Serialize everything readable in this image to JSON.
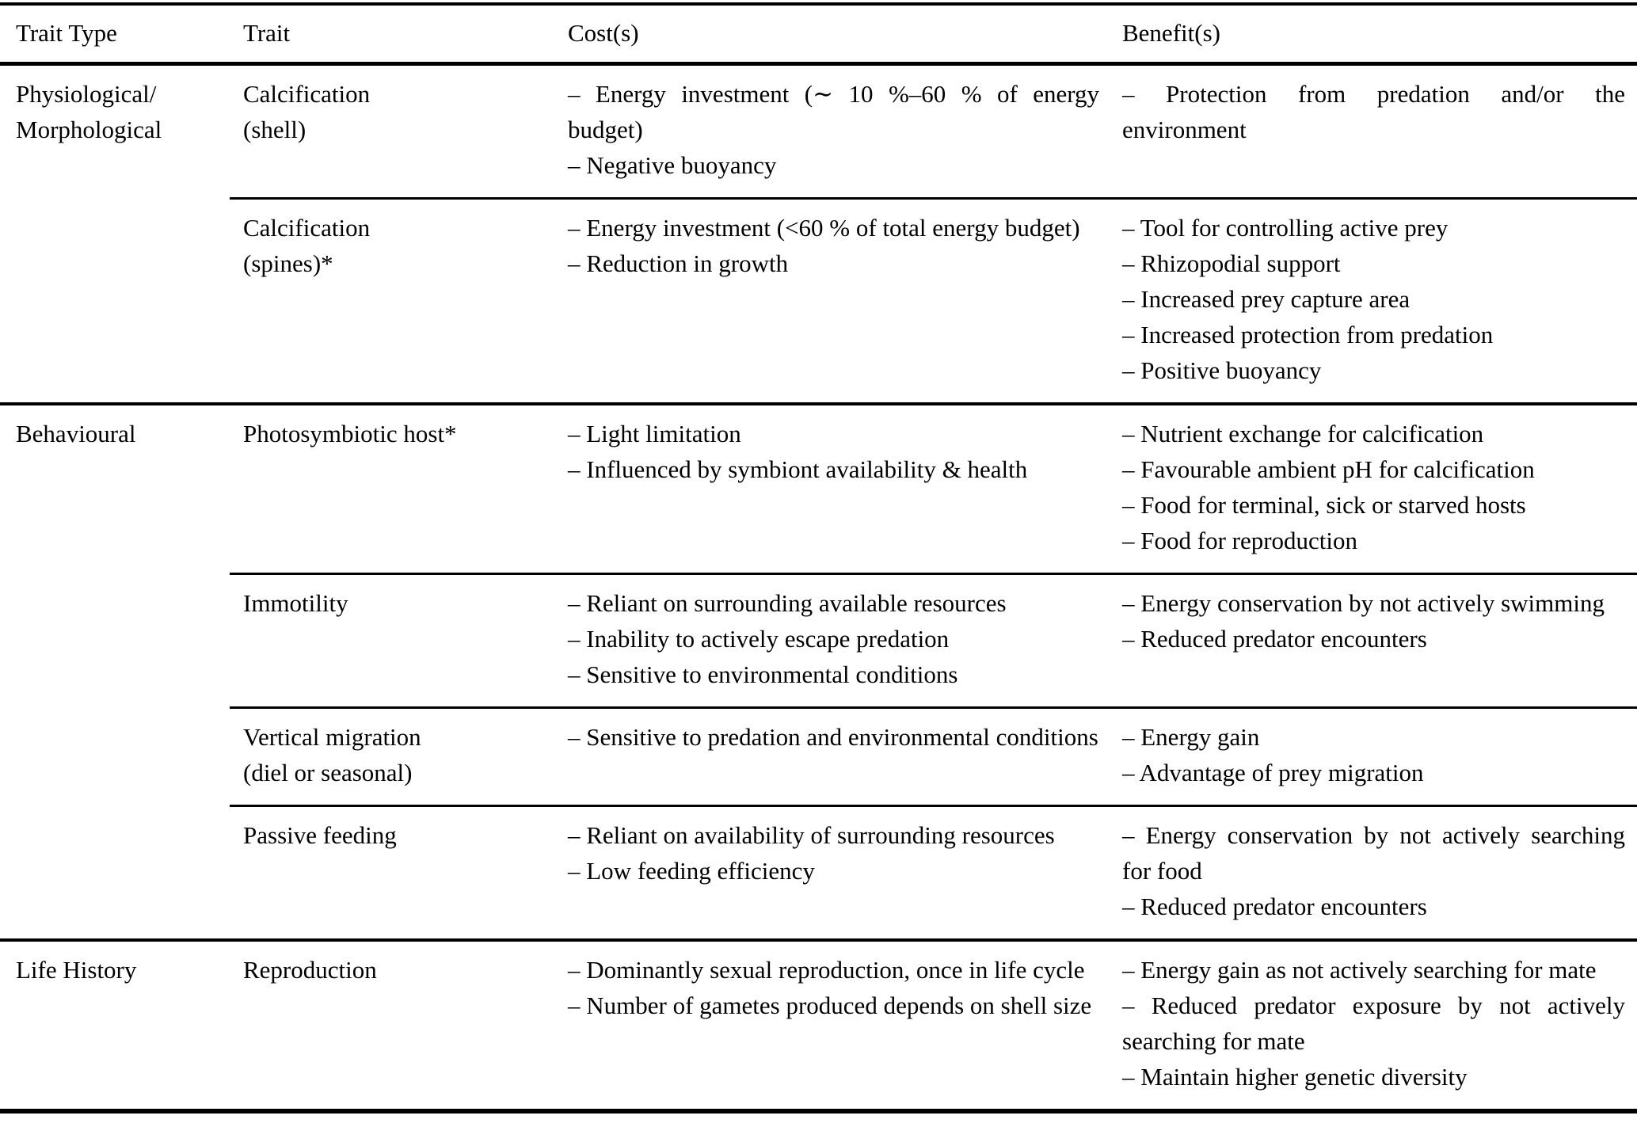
{
  "header": {
    "columns": [
      "Trait Type",
      "Trait",
      "Cost(s)",
      "Benefit(s)"
    ]
  },
  "groups": [
    {
      "trait_type": [
        "Physiological/",
        "Morphological"
      ],
      "rows": [
        {
          "trait": [
            "Calcification",
            "(shell)"
          ],
          "costs": [
            "– Energy investment (∼ 10 %–60 % of energy budget)",
            "– Negative buoyancy"
          ],
          "benefits": [
            "– Protection from predation and/or the environment"
          ]
        },
        {
          "trait": [
            "Calcification",
            "(spines)*"
          ],
          "costs": [
            "– Energy investment (<60 % of total energy budget)",
            "– Reduction in growth"
          ],
          "benefits": [
            "– Tool for controlling active prey",
            "– Rhizopodial support",
            "– Increased prey capture area",
            "– Increased protection from predation",
            "– Positive buoyancy"
          ]
        }
      ]
    },
    {
      "trait_type": [
        "Behavioural"
      ],
      "rows": [
        {
          "trait": [
            "Photosymbiotic host*"
          ],
          "costs": [
            "– Light limitation",
            "– Influenced by symbiont availability & health"
          ],
          "benefits": [
            "– Nutrient exchange for calcification",
            "– Favourable ambient pH for calcification",
            "– Food for terminal, sick or starved hosts",
            "– Food for reproduction"
          ]
        },
        {
          "trait": [
            "Immotility"
          ],
          "costs": [
            "– Reliant on surrounding available resources",
            "– Inability to actively escape predation",
            "– Sensitive to environmental conditions"
          ],
          "benefits": [
            "– Energy conservation by not actively swimming",
            "– Reduced predator encounters"
          ]
        },
        {
          "trait": [
            "Vertical migration",
            "(diel or seasonal)"
          ],
          "costs": [
            "– Sensitive to predation and environmental conditions"
          ],
          "benefits": [
            "– Energy gain",
            "– Advantage of prey migration"
          ]
        },
        {
          "trait": [
            "Passive feeding"
          ],
          "costs": [
            "– Reliant on availability of surrounding resources",
            "– Low feeding efficiency"
          ],
          "benefits": [
            "– Energy conservation by not actively searching for food",
            "– Reduced predator encounters"
          ]
        }
      ]
    },
    {
      "trait_type": [
        "Life History"
      ],
      "rows": [
        {
          "trait": [
            "Reproduction"
          ],
          "costs": [
            "– Dominantly sexual reproduction, once in life cycle",
            "– Number of gametes produced depends on shell size"
          ],
          "benefits": [
            "– Energy gain as not actively searching for mate",
            "– Reduced predator exposure by not actively searching for mate",
            "– Maintain higher genetic diversity"
          ]
        }
      ]
    }
  ]
}
